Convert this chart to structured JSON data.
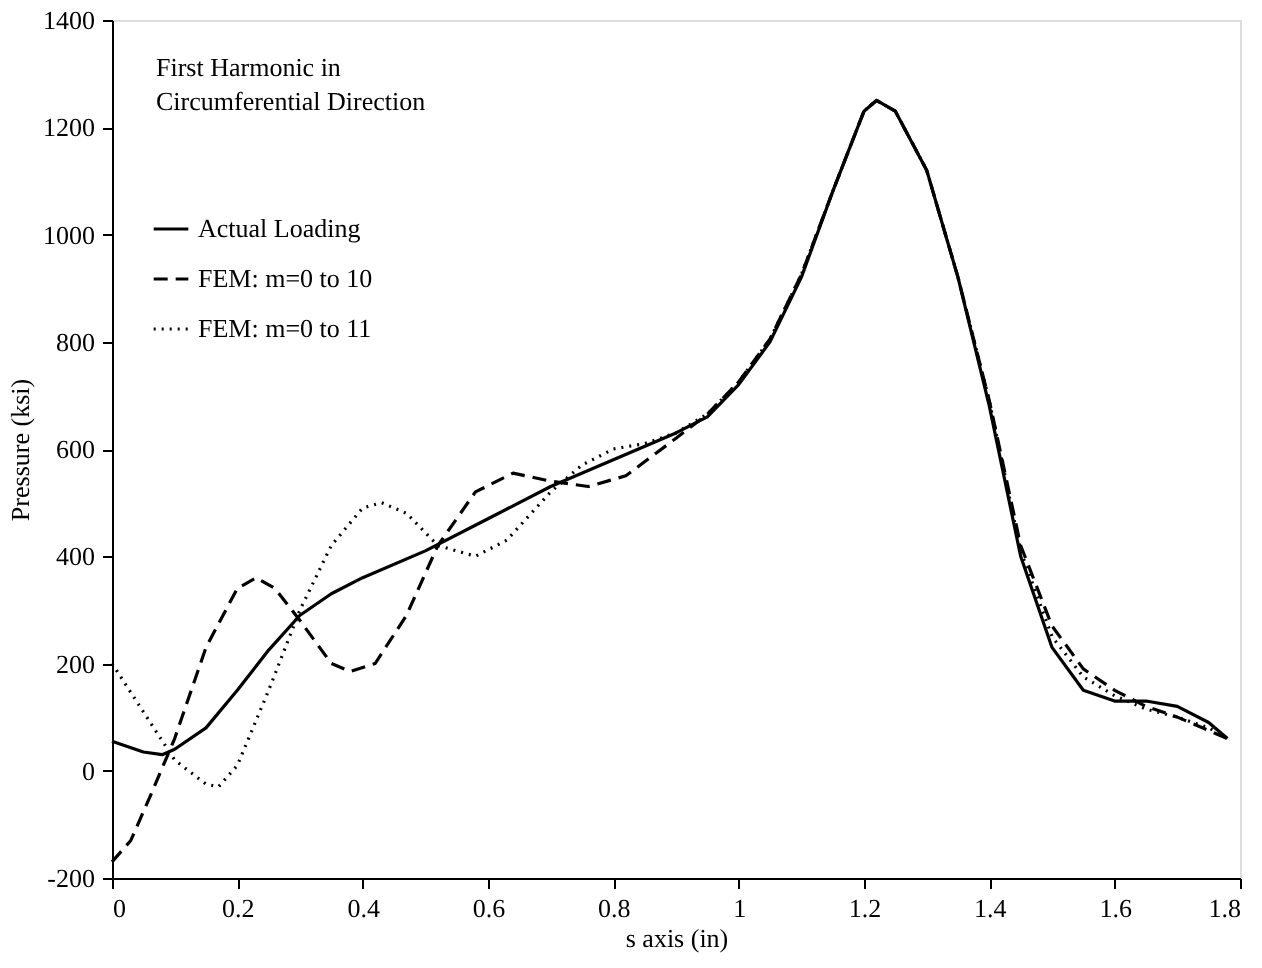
{
  "chart_data": {
    "type": "line",
    "xlabel": "s axis (in)",
    "ylabel": "Pressure (ksi)",
    "annotations": [
      "First Harmonic in",
      "Circumferential Direction"
    ],
    "xlim": [
      0,
      1.8
    ],
    "xticks": [
      0,
      0.2,
      0.4,
      0.6,
      0.8,
      1,
      1.2,
      1.4,
      1.6,
      1.8
    ],
    "ylim": [
      -200,
      1400
    ],
    "yticks": [
      -200,
      0,
      200,
      400,
      600,
      800,
      1000,
      1200,
      1400
    ],
    "grid": false,
    "legend": "top left",
    "marker": "none",
    "series": [
      {
        "name": "Actual Loading",
        "color": "#000000",
        "line_style": "solid",
        "x": [
          0,
          0.05,
          0.08,
          0.1,
          0.15,
          0.2,
          0.25,
          0.3,
          0.35,
          0.4,
          0.5,
          0.6,
          0.7,
          0.8,
          0.9,
          0.95,
          1.0,
          1.05,
          1.1,
          1.15,
          1.2,
          1.22,
          1.25,
          1.3,
          1.35,
          1.4,
          1.45,
          1.5,
          1.55,
          1.6,
          1.65,
          1.7,
          1.75,
          1.78
        ],
        "values": [
          55,
          35,
          30,
          40,
          80,
          150,
          225,
          290,
          330,
          360,
          410,
          470,
          530,
          580,
          630,
          660,
          720,
          800,
          920,
          1080,
          1230,
          1250,
          1230,
          1120,
          920,
          680,
          400,
          230,
          150,
          130,
          130,
          120,
          90,
          60
        ]
      },
      {
        "name": "FEM: m=0 to 10",
        "color": "#000000",
        "line_style": "dashed",
        "x": [
          0,
          0.03,
          0.06,
          0.1,
          0.15,
          0.2,
          0.23,
          0.26,
          0.3,
          0.35,
          0.38,
          0.42,
          0.47,
          0.52,
          0.58,
          0.64,
          0.7,
          0.76,
          0.82,
          0.9,
          0.95,
          1.0,
          1.05,
          1.1,
          1.15,
          1.2,
          1.22,
          1.25,
          1.3,
          1.35,
          1.4,
          1.45,
          1.5,
          1.55,
          1.6,
          1.65,
          1.7,
          1.75,
          1.78
        ],
        "values": [
          -170,
          -130,
          -50,
          60,
          230,
          340,
          360,
          340,
          280,
          200,
          185,
          200,
          290,
          420,
          520,
          555,
          540,
          530,
          550,
          620,
          665,
          725,
          805,
          925,
          1080,
          1230,
          1250,
          1230,
          1120,
          920,
          690,
          420,
          270,
          190,
          150,
          120,
          100,
          75,
          60
        ]
      },
      {
        "name": "FEM: m=0 to 11",
        "color": "#000000",
        "line_style": "dotted",
        "x": [
          0,
          0.05,
          0.1,
          0.15,
          0.17,
          0.2,
          0.25,
          0.3,
          0.35,
          0.4,
          0.43,
          0.47,
          0.52,
          0.58,
          0.63,
          0.7,
          0.75,
          0.8,
          0.85,
          0.9,
          0.95,
          1.0,
          1.05,
          1.1,
          1.15,
          1.2,
          1.22,
          1.25,
          1.3,
          1.35,
          1.4,
          1.45,
          1.5,
          1.55,
          1.6,
          1.65,
          1.7,
          1.75,
          1.78
        ],
        "values": [
          200,
          110,
          20,
          -25,
          -30,
          10,
          150,
          300,
          420,
          490,
          500,
          480,
          420,
          400,
          430,
          520,
          570,
          600,
          610,
          630,
          665,
          725,
          805,
          925,
          1080,
          1230,
          1250,
          1230,
          1120,
          920,
          690,
          410,
          250,
          175,
          140,
          115,
          100,
          80,
          60
        ]
      }
    ]
  }
}
